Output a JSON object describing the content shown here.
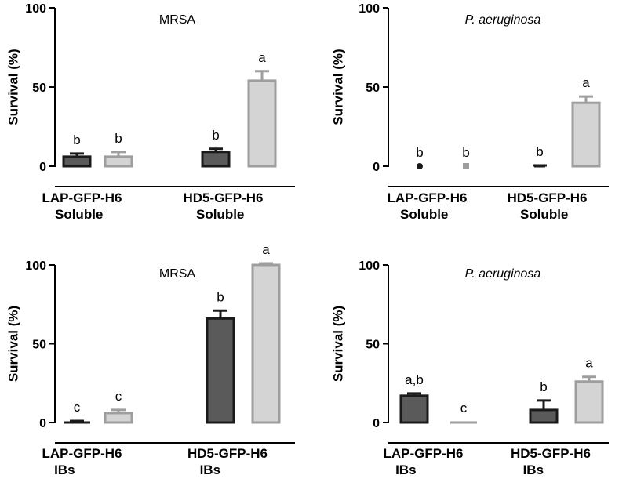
{
  "colors": {
    "dark_fill": "#5a5a5a",
    "dark_stroke": "#1a1a1a",
    "light_fill": "#d4d4d4",
    "light_stroke": "#9e9e9e",
    "axis": "#000000"
  },
  "chart_data": [
    {
      "type": "bar",
      "title": "MRSA",
      "title_italic": false,
      "ylabel": "Survival (%)",
      "ylim": [
        0,
        100
      ],
      "yticks": [
        "0",
        "50",
        "100"
      ],
      "groups": [
        {
          "label_lines": [
            "LAP-GFP-H6",
            "Soluble"
          ],
          "bars": [
            {
              "shade": "dark",
              "value": 6,
              "error": 2,
              "letter": "b"
            },
            {
              "shade": "light",
              "value": 6,
              "error": 3,
              "letter": "b"
            }
          ]
        },
        {
          "label_lines": [
            "HD5-GFP-H6",
            "Soluble"
          ],
          "bars": [
            {
              "shade": "dark",
              "value": 9,
              "error": 2,
              "letter": "b"
            },
            {
              "shade": "light",
              "value": 54,
              "error": 6,
              "letter": "a"
            }
          ]
        }
      ]
    },
    {
      "type": "bar",
      "title": "P. aeruginosa",
      "title_italic": true,
      "ylabel": "Survival (%)",
      "ylim": [
        0,
        100
      ],
      "yticks": [
        "0",
        "50",
        "100"
      ],
      "groups": [
        {
          "label_lines": [
            "LAP-GFP-H6",
            "Soluble"
          ],
          "bars": [
            {
              "shade": "dark",
              "value": 0,
              "error": 0,
              "letter": "b"
            },
            {
              "shade": "light",
              "value": 0,
              "error": 0,
              "letter": "b"
            }
          ]
        },
        {
          "label_lines": [
            "HD5-GFP-H6",
            "Soluble"
          ],
          "bars": [
            {
              "shade": "dark",
              "value": 0,
              "error": 0.5,
              "letter": "b"
            },
            {
              "shade": "light",
              "value": 40,
              "error": 4,
              "letter": "a"
            }
          ]
        }
      ]
    },
    {
      "type": "bar",
      "title": "MRSA",
      "title_italic": false,
      "ylabel": "Survival (%)",
      "ylim": [
        0,
        100
      ],
      "yticks": [
        "0",
        "50",
        "100"
      ],
      "groups": [
        {
          "label_lines": [
            "LAP-GFP-H6",
            "IBs"
          ],
          "bars": [
            {
              "shade": "dark",
              "value": 0.5,
              "error": 0.5,
              "letter": "c"
            },
            {
              "shade": "light",
              "value": 6,
              "error": 2,
              "letter": "c"
            }
          ]
        },
        {
          "label_lines": [
            "HD5-GFP-H6",
            "IBs"
          ],
          "bars": [
            {
              "shade": "dark",
              "value": 66,
              "error": 5,
              "letter": "b"
            },
            {
              "shade": "light",
              "value": 100,
              "error": 1,
              "letter": "a"
            }
          ]
        }
      ]
    },
    {
      "type": "bar",
      "title": "P. aeruginosa",
      "title_italic": true,
      "ylabel": "Survival (%)",
      "ylim": [
        0,
        100
      ],
      "yticks": [
        "0",
        "50",
        "100"
      ],
      "groups": [
        {
          "label_lines": [
            "LAP-GFP-H6",
            "IBs"
          ],
          "bars": [
            {
              "shade": "dark",
              "value": 17,
              "error": 1.5,
              "letter": "a,b"
            },
            {
              "shade": "light",
              "value": 0.5,
              "error": 0,
              "letter": "c"
            }
          ]
        },
        {
          "label_lines": [
            "HD5-GFP-H6",
            "IBs"
          ],
          "bars": [
            {
              "shade": "dark",
              "value": 8,
              "error": 6,
              "letter": "b"
            },
            {
              "shade": "light",
              "value": 26,
              "error": 3,
              "letter": "a"
            }
          ]
        }
      ]
    }
  ]
}
